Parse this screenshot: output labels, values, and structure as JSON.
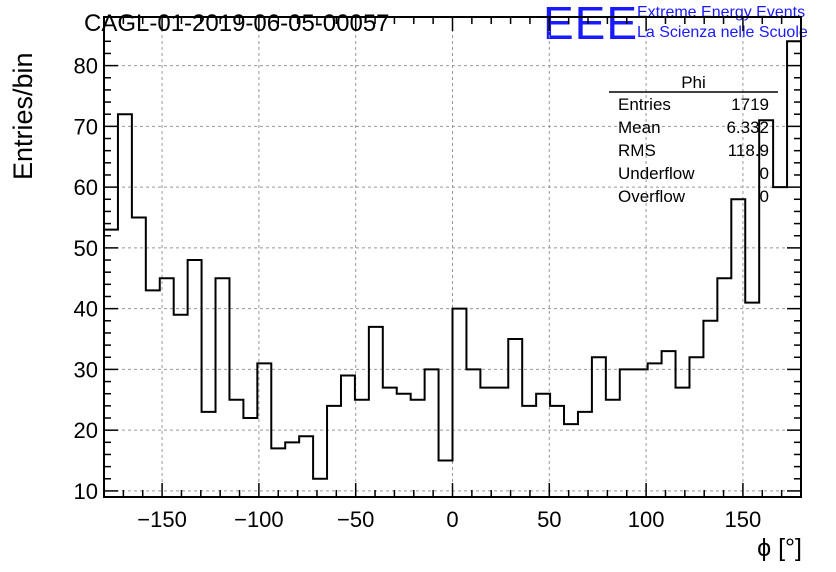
{
  "title": "CAGL-01-2019-06-05-00057",
  "logo": {
    "mark": "EEE",
    "line1": "Extreme Energy Events",
    "line2": "La Scienza nelle Scuole",
    "color": "#1a1aff"
  },
  "stats_box": {
    "name": "Phi",
    "rows": [
      {
        "label": "Entries",
        "value": "1719"
      },
      {
        "label": "Mean",
        "value": "6.332"
      },
      {
        "label": "RMS",
        "value": "118.9"
      },
      {
        "label": "Underflow",
        "value": "0"
      },
      {
        "label": "Overflow",
        "value": "0"
      }
    ]
  },
  "chart_data": {
    "type": "bar",
    "style": "step-histogram",
    "xlabel": "ϕ [°]",
    "ylabel": "Entries/bin",
    "xlim": [
      -180,
      180
    ],
    "ylim": [
      9,
      88
    ],
    "grid": true,
    "bin_width": 7.2,
    "bin_edges_start": -180,
    "values": [
      53,
      72,
      55,
      43,
      45,
      39,
      48,
      23,
      45,
      25,
      22,
      31,
      17,
      18,
      19,
      12,
      24,
      29,
      25,
      37,
      27,
      26,
      25,
      30,
      15,
      40,
      30,
      27,
      27,
      35,
      24,
      26,
      24,
      21,
      23,
      32,
      25,
      30,
      30,
      31,
      33,
      27,
      32,
      38,
      45,
      58,
      41,
      71,
      60,
      84
    ],
    "x_ticks": [
      -150,
      -100,
      -50,
      0,
      50,
      100,
      150
    ],
    "y_ticks": [
      10,
      20,
      30,
      40,
      50,
      60,
      70,
      80
    ],
    "tick_labels_x": [
      "−150",
      "−100",
      "−50",
      "0",
      "50",
      "100",
      "150"
    ],
    "tick_labels_y": [
      "10",
      "20",
      "30",
      "40",
      "50",
      "60",
      "70",
      "80"
    ]
  }
}
